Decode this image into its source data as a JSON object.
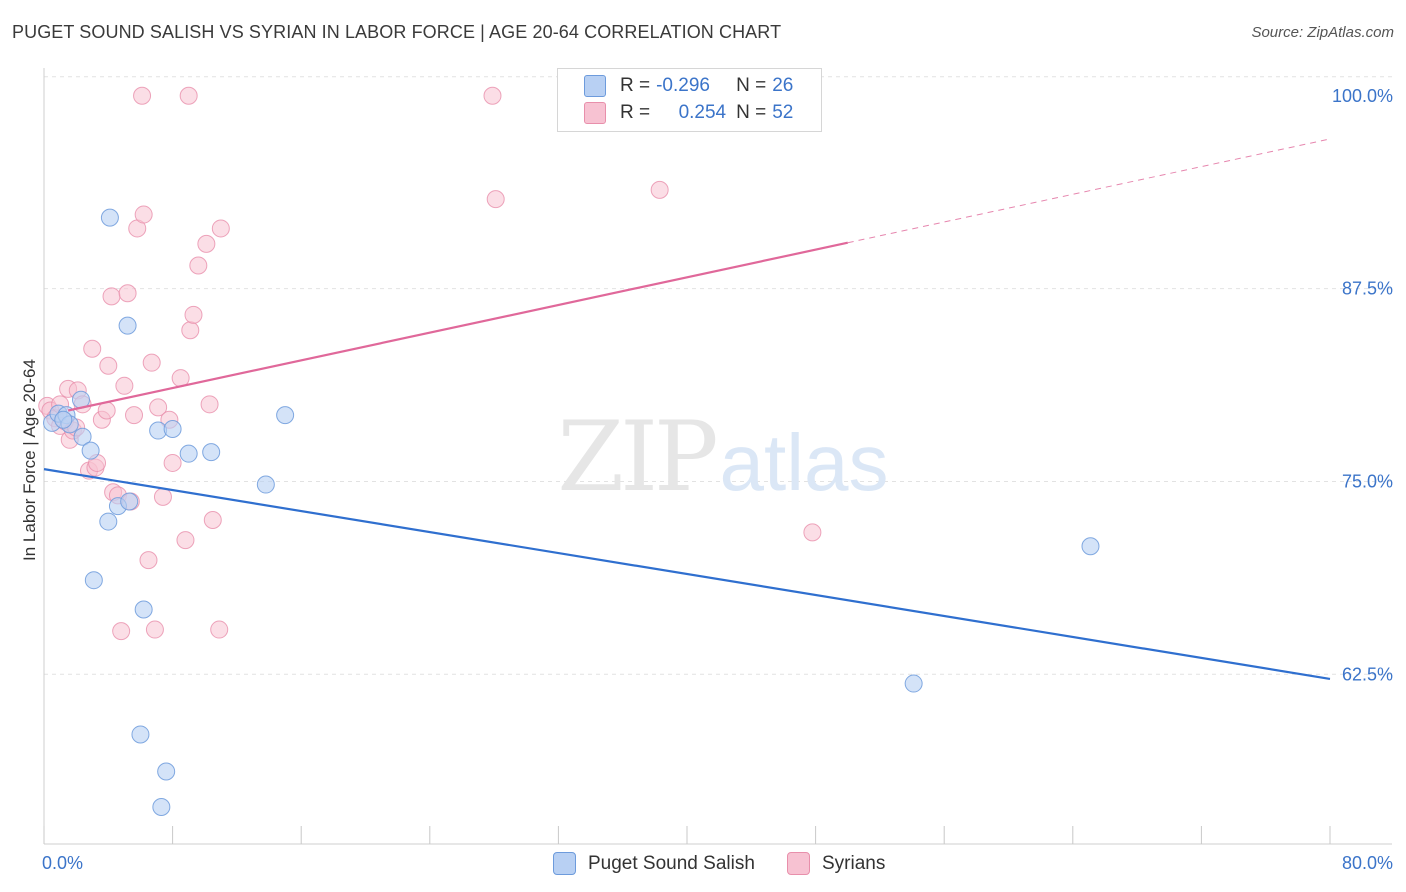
{
  "title": "PUGET SOUND SALISH VS SYRIAN IN LABOR FORCE | AGE 20-64 CORRELATION CHART",
  "source": "Source: ZipAtlas.com",
  "watermark": {
    "zip": "ZIP",
    "atlas": "atlas"
  },
  "legend": {
    "rows": [
      {
        "r_label": "R =",
        "r_value": "-0.296",
        "n_label": "N =",
        "n_value": "26"
      },
      {
        "r_label": "R =",
        "r_value": "0.254",
        "n_label": "N =",
        "n_value": "52"
      }
    ]
  },
  "colors": {
    "blue_fill": "#b8d0f3",
    "blue_stroke": "#6d9bdc",
    "blue_line": "#2f6fcf",
    "pink_fill": "#f7c2d2",
    "pink_stroke": "#e88fab",
    "pink_line": "#e0689a",
    "axis_label": "#3b74c9",
    "grid": "#e2e2e2"
  },
  "chart_data": {
    "type": "scatter",
    "title": "PUGET SOUND SALISH VS SYRIAN IN LABOR FORCE | AGE 20-64 CORRELATION CHART",
    "xlabel": "",
    "ylabel": "In Labor Force | Age 20-64",
    "xlim": [
      0,
      80
    ],
    "ylim": [
      51.5,
      101.8
    ],
    "x_tick_labels": [
      {
        "value": 0,
        "label": "0.0%"
      },
      {
        "value": 80,
        "label": "80.0%"
      }
    ],
    "y_tick_labels": [
      {
        "value": 100,
        "label": "100.0%"
      },
      {
        "value": 87.5,
        "label": "87.5%"
      },
      {
        "value": 75,
        "label": "75.0%"
      },
      {
        "value": 62.5,
        "label": "62.5%"
      }
    ],
    "grid": true,
    "legend_position": "top-center",
    "series": [
      {
        "name": "Puget Sound Salish",
        "color": "#b8d0f3",
        "trend": {
          "x0": 0,
          "y0": 75.8,
          "x1": 80,
          "y1": 62.2,
          "dashed_from": null
        },
        "points": [
          [
            0.5,
            78.8
          ],
          [
            0.9,
            79.4
          ],
          [
            1.4,
            79.3
          ],
          [
            1.6,
            78.7
          ],
          [
            2.3,
            80.3
          ],
          [
            2.4,
            77.9
          ],
          [
            2.9,
            77.0
          ],
          [
            3.1,
            68.6
          ],
          [
            4.0,
            72.4
          ],
          [
            4.1,
            92.1
          ],
          [
            4.6,
            73.4
          ],
          [
            5.2,
            85.1
          ],
          [
            5.3,
            73.7
          ],
          [
            6.0,
            58.6
          ],
          [
            6.2,
            66.7
          ],
          [
            7.1,
            78.3
          ],
          [
            7.6,
            56.2
          ],
          [
            7.3,
            53.9
          ],
          [
            8.0,
            78.4
          ],
          [
            9.0,
            76.8
          ],
          [
            10.4,
            76.9
          ],
          [
            13.8,
            74.8
          ],
          [
            15.0,
            79.3
          ],
          [
            1.2,
            79.0
          ],
          [
            54.1,
            61.9
          ],
          [
            65.1,
            70.8
          ]
        ]
      },
      {
        "name": "Syrians",
        "color": "#f7c2d2",
        "trend": {
          "x0": 1.5,
          "y0": 79.6,
          "x1": 80,
          "y1": 97.2,
          "dashed_from": 50
        },
        "points": [
          [
            0.2,
            79.9
          ],
          [
            0.4,
            79.6
          ],
          [
            0.7,
            79.1
          ],
          [
            1.0,
            78.6
          ],
          [
            1.3,
            78.9
          ],
          [
            1.5,
            81.0
          ],
          [
            1.6,
            77.7
          ],
          [
            1.8,
            78.3
          ],
          [
            2.1,
            80.9
          ],
          [
            2.4,
            80.0
          ],
          [
            2.8,
            75.7
          ],
          [
            3.0,
            83.6
          ],
          [
            3.2,
            75.9
          ],
          [
            3.3,
            76.2
          ],
          [
            3.6,
            79.0
          ],
          [
            3.9,
            79.6
          ],
          [
            4.0,
            82.5
          ],
          [
            4.2,
            87.0
          ],
          [
            4.3,
            74.3
          ],
          [
            4.6,
            74.1
          ],
          [
            4.8,
            65.3
          ],
          [
            5.0,
            81.2
          ],
          [
            5.2,
            87.2
          ],
          [
            5.4,
            73.7
          ],
          [
            5.6,
            79.3
          ],
          [
            5.8,
            91.4
          ],
          [
            6.1,
            100.0
          ],
          [
            6.2,
            92.3
          ],
          [
            6.5,
            69.9
          ],
          [
            6.7,
            82.7
          ],
          [
            7.1,
            79.8
          ],
          [
            7.4,
            74.0
          ],
          [
            7.8,
            79.0
          ],
          [
            8.0,
            76.2
          ],
          [
            8.5,
            81.7
          ],
          [
            8.8,
            71.2
          ],
          [
            9.0,
            100.0
          ],
          [
            9.1,
            84.8
          ],
          [
            9.3,
            85.8
          ],
          [
            9.6,
            89.0
          ],
          [
            10.1,
            90.4
          ],
          [
            10.3,
            80.0
          ],
          [
            10.5,
            72.5
          ],
          [
            10.9,
            65.4
          ],
          [
            11.0,
            91.4
          ],
          [
            27.9,
            100.0
          ],
          [
            28.1,
            93.3
          ],
          [
            38.3,
            93.9
          ],
          [
            47.8,
            71.7
          ],
          [
            1.0,
            80.0
          ],
          [
            2.0,
            78.5
          ],
          [
            6.9,
            65.4
          ]
        ]
      }
    ]
  }
}
